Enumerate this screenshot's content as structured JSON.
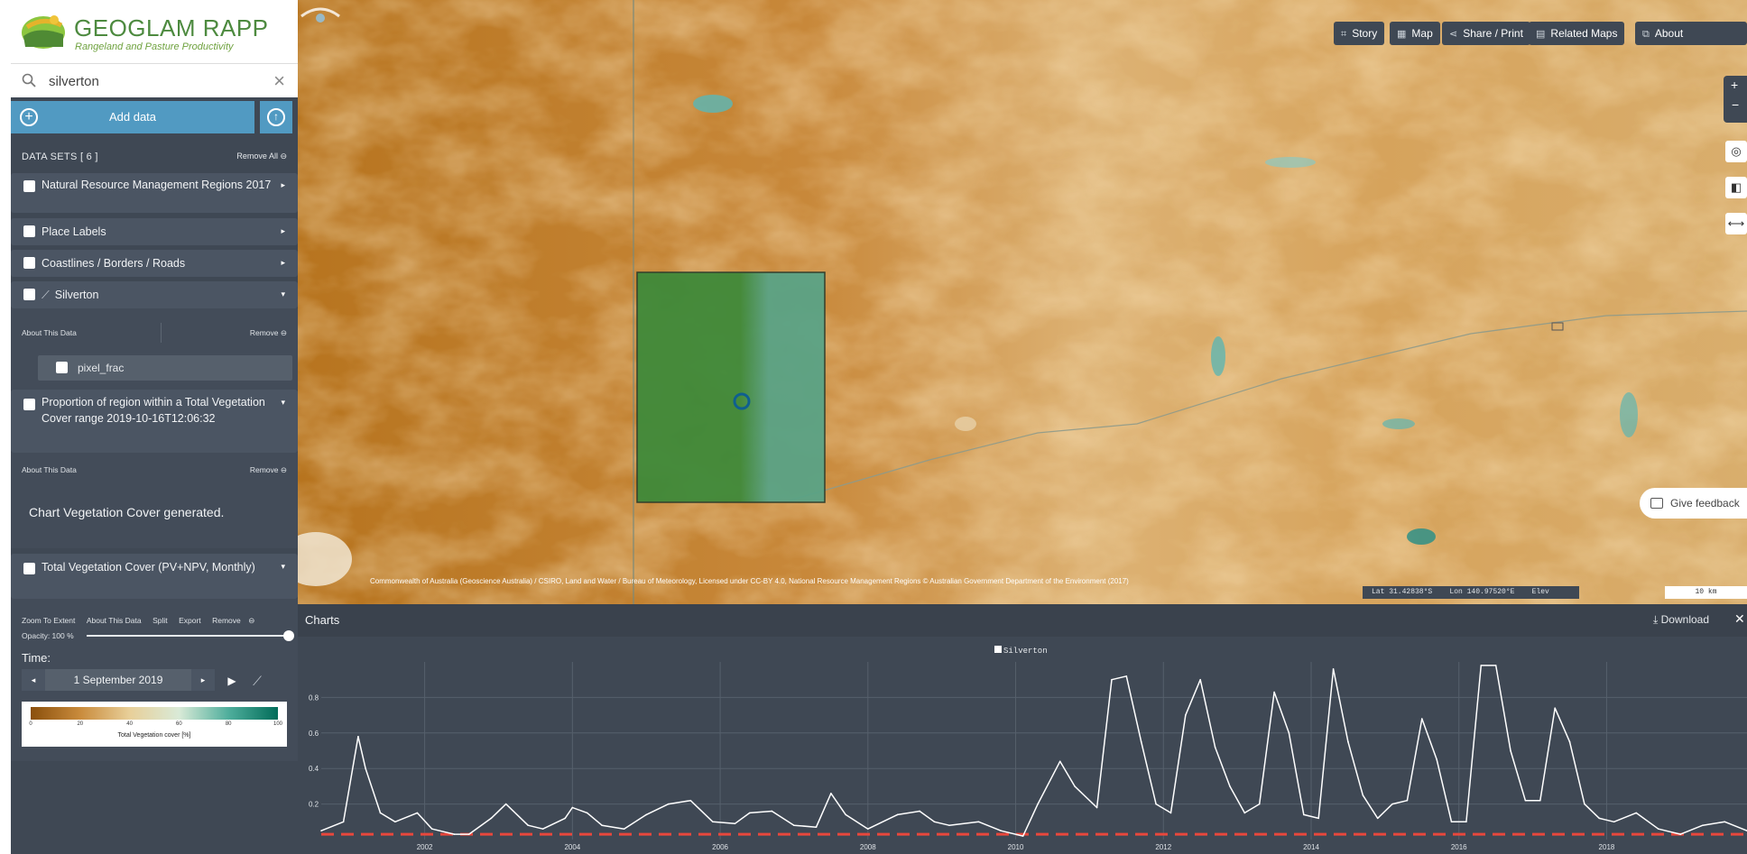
{
  "app": {
    "title": "GEOGLAM RAPP",
    "subtitle": "Rangeland and Pasture Productivity"
  },
  "search": {
    "value": "silverton"
  },
  "add_data": {
    "label": "Add data"
  },
  "datasets": {
    "header": "DATA SETS  [ 6 ]",
    "remove_all": "Remove All",
    "items": [
      {
        "title": "Natural Resource Management Regions 2017"
      },
      {
        "title": "Place Labels"
      },
      {
        "title": "Coastlines / Borders / Roads"
      },
      {
        "title": "Silverton",
        "about": "About This Data",
        "remove": "Remove",
        "sublayer": "pixel_frac"
      },
      {
        "title": "Proportion of region within a Total Vegetation Cover range 2019-10-16T12:06:32",
        "about": "About This Data",
        "remove": "Remove",
        "message": "Chart Vegetation Cover generated."
      },
      {
        "title": "Total Vegetation Cover (PV+NPV, Monthly)",
        "links": [
          "Zoom To Extent",
          "About This Data",
          "Split",
          "Export",
          "Remove"
        ],
        "opacity": "Opacity: 100 %",
        "opacity_value": 1.0,
        "time_label": "Time:",
        "time_value": "1 September 2019",
        "legend": {
          "ticks": [
            "0",
            "20",
            "40",
            "60",
            "80",
            "100"
          ],
          "title": "Total Vegetation cover [%]"
        }
      }
    ]
  },
  "map": {
    "buttons": [
      "Story",
      "Map",
      "Share / Print",
      "Related Maps",
      "About"
    ],
    "feedback": "Give feedback",
    "credit": "Commonwealth of Australia (Geoscience Australia) / CSIRO, Land and Water / Bureau of Meteorology, Licensed under CC-BY 4.0, National Resource Management Regions © Australian Government Department of the Environment (2017)",
    "lat": "Lat  31.42838°S",
    "lon": "Lon  140.97520°E",
    "elev": "Elev",
    "scale": "10 km"
  },
  "charts": {
    "title": "Charts",
    "download": "Download",
    "chart_data": {
      "type": "line",
      "series": [
        {
          "name": "Silverton",
          "color": "#ffffff"
        }
      ],
      "reference_line": {
        "value": 0.03,
        "color": "#e8473c",
        "style": "dashed"
      },
      "ylim": [
        0,
        1.0
      ],
      "yticks": [
        "0.2",
        "0.4",
        "0.6",
        "0.8"
      ],
      "xticks": [
        "2002",
        "2004",
        "2006",
        "2008",
        "2010",
        "2012",
        "2014",
        "2016",
        "2018"
      ],
      "xlim": [
        2000.6,
        2019.9
      ],
      "x": [
        2000.6,
        2000.9,
        2001.1,
        2001.2,
        2001.4,
        2001.6,
        2001.9,
        2002.1,
        2002.4,
        2002.6,
        2002.9,
        2003.1,
        2003.4,
        2003.6,
        2003.9,
        2004.0,
        2004.2,
        2004.4,
        2004.7,
        2005.0,
        2005.3,
        2005.6,
        2005.9,
        2006.2,
        2006.4,
        2006.7,
        2007.0,
        2007.3,
        2007.5,
        2007.7,
        2008.0,
        2008.4,
        2008.7,
        2008.9,
        2009.1,
        2009.5,
        2009.8,
        2010.1,
        2010.3,
        2010.6,
        2010.8,
        2011.1,
        2011.3,
        2011.5,
        2011.7,
        2011.9,
        2012.1,
        2012.3,
        2012.5,
        2012.7,
        2012.9,
        2013.1,
        2013.3,
        2013.5,
        2013.7,
        2013.9,
        2014.1,
        2014.3,
        2014.5,
        2014.7,
        2014.9,
        2015.1,
        2015.3,
        2015.5,
        2015.7,
        2015.9,
        2016.1,
        2016.3,
        2016.5,
        2016.7,
        2016.9,
        2017.1,
        2017.3,
        2017.5,
        2017.7,
        2017.9,
        2018.1,
        2018.4,
        2018.7,
        2019.0,
        2019.3,
        2019.6,
        2019.9
      ],
      "values": [
        0.05,
        0.1,
        0.58,
        0.4,
        0.15,
        0.1,
        0.15,
        0.06,
        0.03,
        0.03,
        0.12,
        0.2,
        0.08,
        0.06,
        0.12,
        0.18,
        0.15,
        0.08,
        0.06,
        0.14,
        0.2,
        0.22,
        0.1,
        0.09,
        0.15,
        0.16,
        0.08,
        0.07,
        0.26,
        0.14,
        0.06,
        0.14,
        0.16,
        0.1,
        0.08,
        0.1,
        0.05,
        0.02,
        0.2,
        0.44,
        0.3,
        0.18,
        0.9,
        0.92,
        0.55,
        0.2,
        0.15,
        0.7,
        0.9,
        0.52,
        0.3,
        0.15,
        0.2,
        0.83,
        0.6,
        0.14,
        0.12,
        0.96,
        0.55,
        0.25,
        0.12,
        0.2,
        0.22,
        0.68,
        0.45,
        0.1,
        0.1,
        0.98,
        0.98,
        0.5,
        0.22,
        0.22,
        0.74,
        0.55,
        0.2,
        0.12,
        0.1,
        0.15,
        0.06,
        0.03,
        0.08,
        0.1,
        0.05
      ]
    }
  }
}
